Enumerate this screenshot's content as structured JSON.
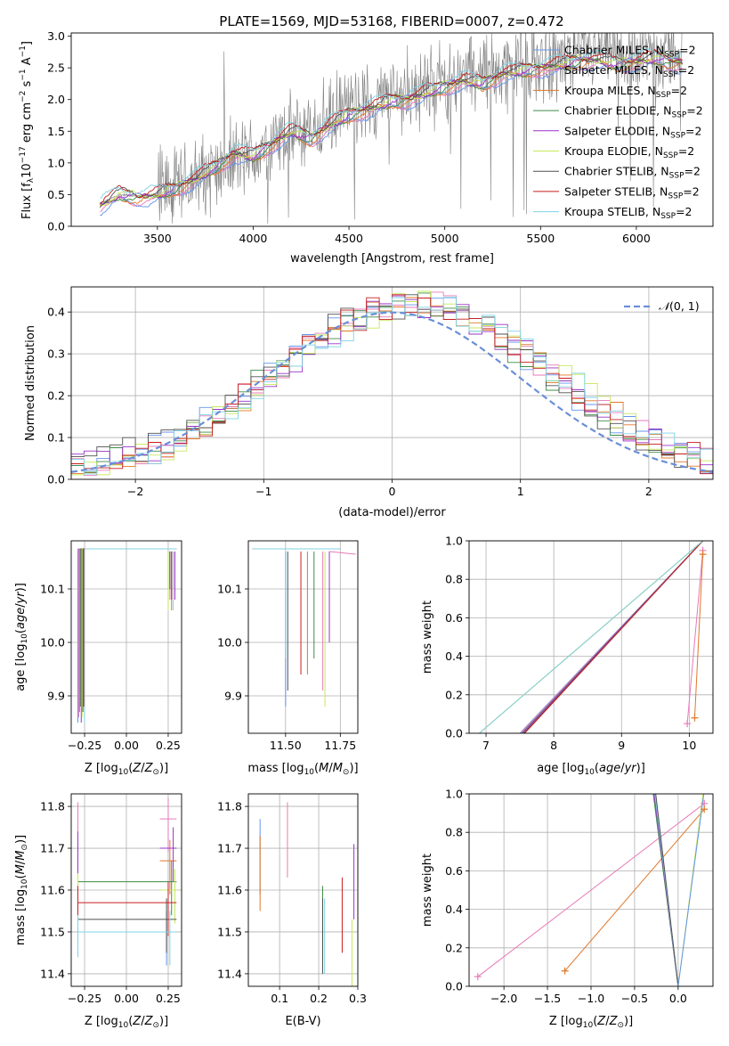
{
  "chart_data": [
    {
      "id": "spectrum",
      "type": "line",
      "title": "PLATE=1569, MJD=53168, FIBERID=0007, z=0.472",
      "xlabel": "wavelength [Angstrom, rest frame]",
      "ylabel": "Flux [f_λ 10^-17 erg cm^-2 s^-1 A^-1]",
      "xlim": [
        3050,
        6400
      ],
      "ylim": [
        0,
        3.05
      ],
      "xticks": [
        3500,
        4000,
        4500,
        5000,
        5500,
        6000
      ],
      "yticks": [
        0.0,
        0.5,
        1.0,
        1.5,
        2.0,
        2.5,
        3.0
      ],
      "data_curve": {
        "name": "",
        "color": "#808080",
        "x": [
          3200,
          3300,
          3400,
          3500,
          3600,
          3700,
          3800,
          3900,
          4000,
          4100,
          4200,
          4300,
          4400,
          4500,
          4600,
          4700,
          4800,
          4900,
          5000,
          5100,
          5200,
          5300,
          5400,
          5500,
          5600,
          5700,
          5800,
          5900,
          6000,
          6100,
          6200
        ],
        "y": [
          0.35,
          0.5,
          0.48,
          0.5,
          0.6,
          0.75,
          0.9,
          1.05,
          1.1,
          1.3,
          1.45,
          1.5,
          1.7,
          1.85,
          1.95,
          2.05,
          2.1,
          2.2,
          2.3,
          2.4,
          2.45,
          2.5,
          2.55,
          2.6,
          2.65,
          2.7,
          2.75,
          2.7,
          2.75,
          2.8,
          2.75
        ],
        "noise": 1.6
      },
      "model_x": [
        3200,
        3300,
        3400,
        3500,
        3600,
        3700,
        3800,
        3900,
        4000,
        4100,
        4200,
        4300,
        4400,
        4500,
        4600,
        4700,
        4800,
        4900,
        5000,
        5100,
        5200,
        5300,
        5400,
        5500,
        5600,
        5700,
        5800,
        5900,
        6000,
        6100,
        6200
      ],
      "model_y": [
        0.32,
        0.5,
        0.45,
        0.5,
        0.6,
        0.75,
        0.92,
        1.15,
        1.1,
        1.3,
        1.5,
        1.38,
        1.6,
        1.75,
        1.85,
        1.95,
        2.0,
        2.1,
        2.2,
        2.3,
        2.25,
        2.4,
        2.45,
        2.5,
        2.55,
        2.6,
        2.62,
        2.55,
        2.6,
        2.65,
        2.58
      ],
      "series": [
        {
          "name": "Chabrier MILES, N_SSP=2",
          "color": "#6495ed"
        },
        {
          "name": "Salpeter MILES, N_SSP=2",
          "color": "#e87ab7"
        },
        {
          "name": "Kroupa MILES, N_SSP=2",
          "color": "#e0782a"
        },
        {
          "name": "Chabrier ELODIE, N_SSP=2",
          "color": "#3d8c46"
        },
        {
          "name": "Salpeter ELODIE, N_SSP=2",
          "color": "#9a32c8"
        },
        {
          "name": "Kroupa ELODIE, N_SSP=2",
          "color": "#c6e85a"
        },
        {
          "name": "Chabrier STELIB, N_SSP=2",
          "color": "#505050"
        },
        {
          "name": "Salpeter STELIB, N_SSP=2",
          "color": "#c81e1e"
        },
        {
          "name": "Kroupa STELIB, N_SSP=2",
          "color": "#7fd3e6"
        }
      ]
    },
    {
      "id": "residuals",
      "type": "line",
      "xlabel": "(data-model)/error",
      "ylabel": "Normed distribution",
      "xlim": [
        -2.5,
        2.5
      ],
      "ylim": [
        0,
        0.46
      ],
      "xticks": [
        -2,
        -1,
        0,
        1,
        2
      ],
      "yticks": [
        0.0,
        0.1,
        0.2,
        0.3,
        0.4
      ],
      "legend": {
        "label": "N(0,1)",
        "position": "top-right",
        "color": "#6a8fd8"
      },
      "gaussian": {
        "mean": 0,
        "sigma": 1
      }
    },
    {
      "id": "age_vs_Z",
      "type": "scatter",
      "xlabel": "Z [log10(Z/Z_sun)]",
      "ylabel": "age [log10(age/yr)]",
      "xlim": [
        -0.33,
        0.33
      ],
      "ylim": [
        9.83,
        10.19
      ],
      "xticks": [
        -0.25,
        0.0,
        0.25
      ],
      "yticks": [
        9.9,
        10.0,
        10.1
      ]
    },
    {
      "id": "age_vs_mass",
      "type": "scatter",
      "xlabel": "mass [log10(M/M_sun)]",
      "xlim": [
        11.33,
        11.83
      ],
      "ylim": [
        9.83,
        10.19
      ],
      "xticks": [
        11.5,
        11.75
      ],
      "yticks": [
        9.9,
        10.0,
        10.1
      ]
    },
    {
      "id": "weight_vs_age",
      "type": "line",
      "xlabel": "age [log10(age/yr)]",
      "ylabel": "mass weight",
      "xlim": [
        6.75,
        10.35
      ],
      "ylim": [
        0,
        1.0
      ],
      "xticks": [
        7,
        8,
        9,
        10
      ],
      "yticks": [
        0.0,
        0.2,
        0.4,
        0.6,
        0.8,
        1.0
      ]
    },
    {
      "id": "mass_vs_Z",
      "type": "scatter",
      "xlabel": "Z [log10(Z/Z_sun)]",
      "ylabel": "mass [log10(M/M_sun)]",
      "xlim": [
        -0.33,
        0.33
      ],
      "ylim": [
        11.37,
        11.83
      ],
      "xticks": [
        -0.25,
        0.0,
        0.25
      ],
      "yticks": [
        11.4,
        11.5,
        11.6,
        11.7,
        11.8
      ]
    },
    {
      "id": "mass_vs_ebv",
      "type": "scatter",
      "xlabel": "E(B-V)",
      "xlim": [
        0.02,
        0.3
      ],
      "ylim": [
        11.37,
        11.83
      ],
      "xticks": [
        0.1,
        0.2,
        0.3
      ],
      "yticks": [
        11.4,
        11.5,
        11.6,
        11.7,
        11.8
      ]
    },
    {
      "id": "weight_vs_Z",
      "type": "line",
      "xlabel": "Z [log10(Z/Z_sun)]",
      "ylabel": "mass weight",
      "xlim": [
        -2.4,
        0.4
      ],
      "ylim": [
        0,
        1.0
      ],
      "xticks": [
        -2.0,
        -1.5,
        -1.0,
        -0.5,
        0.0
      ],
      "yticks": [
        0.0,
        0.2,
        0.4,
        0.6,
        0.8,
        1.0
      ]
    }
  ]
}
